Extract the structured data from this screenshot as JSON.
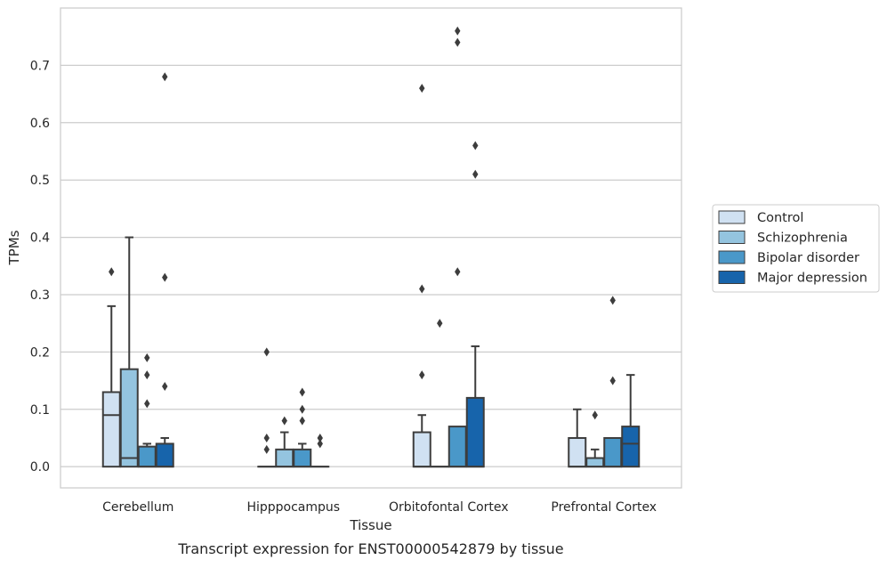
{
  "caption": "Transcript expression for ENST00000542879 by tissue",
  "chart_data": {
    "type": "boxplot",
    "title": "",
    "xlabel": "Tissue",
    "ylabel": "TPMs",
    "ylim": [
      -0.037,
      0.8
    ],
    "yticks": [
      0.0,
      0.1,
      0.2,
      0.3,
      0.4,
      0.5,
      0.6,
      0.7
    ],
    "ytick_labels": [
      "0.0",
      "0.1",
      "0.2",
      "0.3",
      "0.4",
      "0.5",
      "0.6",
      "0.7"
    ],
    "grid": "horizontal",
    "legend_position": "right",
    "categories": [
      "Cerebellum",
      "Hipppocampus",
      "Orbitofontal Cortex",
      "Prefrontal Cortex"
    ],
    "series": [
      {
        "name": "Control",
        "color": "#d0e1f2",
        "boxes": [
          {
            "q1": 0.0,
            "median": 0.09,
            "q3": 0.13,
            "whisker_low": 0.0,
            "whisker_high": 0.28,
            "outliers": [
              0.34
            ]
          },
          {
            "q1": 0.0,
            "median": 0.0,
            "q3": 0.0,
            "whisker_low": 0.0,
            "whisker_high": 0.0,
            "outliers": [
              0.2,
              0.05,
              0.03
            ]
          },
          {
            "q1": 0.0,
            "median": 0.0,
            "q3": 0.06,
            "whisker_low": 0.0,
            "whisker_high": 0.09,
            "outliers": [
              0.66,
              0.31,
              0.16
            ]
          },
          {
            "q1": 0.0,
            "median": 0.0,
            "q3": 0.05,
            "whisker_low": 0.0,
            "whisker_high": 0.1,
            "outliers": []
          }
        ]
      },
      {
        "name": "Schizophrenia",
        "color": "#94c4df",
        "boxes": [
          {
            "q1": 0.0,
            "median": 0.015,
            "q3": 0.17,
            "whisker_low": 0.0,
            "whisker_high": 0.4,
            "outliers": []
          },
          {
            "q1": 0.0,
            "median": 0.0,
            "q3": 0.03,
            "whisker_low": 0.0,
            "whisker_high": 0.06,
            "outliers": [
              0.08
            ]
          },
          {
            "q1": 0.0,
            "median": 0.0,
            "q3": 0.0,
            "whisker_low": 0.0,
            "whisker_high": 0.0,
            "outliers": [
              0.25
            ]
          },
          {
            "q1": 0.0,
            "median": 0.0,
            "q3": 0.015,
            "whisker_low": 0.0,
            "whisker_high": 0.03,
            "outliers": [
              0.09
            ]
          }
        ]
      },
      {
        "name": "Bipolar disorder",
        "color": "#4a98c9",
        "boxes": [
          {
            "q1": 0.0,
            "median": 0.0,
            "q3": 0.035,
            "whisker_low": 0.0,
            "whisker_high": 0.04,
            "outliers": [
              0.19,
              0.16,
              0.11
            ]
          },
          {
            "q1": 0.0,
            "median": 0.0,
            "q3": 0.03,
            "whisker_low": 0.0,
            "whisker_high": 0.04,
            "outliers": [
              0.13,
              0.1,
              0.08
            ]
          },
          {
            "q1": 0.0,
            "median": 0.0,
            "q3": 0.07,
            "whisker_low": 0.0,
            "whisker_high": 0.07,
            "outliers": [
              0.76,
              0.74,
              0.34
            ]
          },
          {
            "q1": 0.0,
            "median": 0.0,
            "q3": 0.05,
            "whisker_low": 0.0,
            "whisker_high": 0.05,
            "outliers": [
              0.29,
              0.15
            ]
          }
        ]
      },
      {
        "name": "Major depression",
        "color": "#1764ab",
        "boxes": [
          {
            "q1": 0.0,
            "median": 0.0,
            "q3": 0.04,
            "whisker_low": 0.0,
            "whisker_high": 0.05,
            "outliers": [
              0.68,
              0.33,
              0.14
            ]
          },
          {
            "q1": 0.0,
            "median": 0.0,
            "q3": 0.0,
            "whisker_low": 0.0,
            "whisker_high": 0.0,
            "outliers": [
              0.05,
              0.04
            ]
          },
          {
            "q1": 0.0,
            "median": 0.0,
            "q3": 0.12,
            "whisker_low": 0.0,
            "whisker_high": 0.21,
            "outliers": [
              0.56,
              0.51
            ]
          },
          {
            "q1": 0.0,
            "median": 0.04,
            "q3": 0.07,
            "whisker_low": 0.0,
            "whisker_high": 0.16,
            "outliers": []
          }
        ]
      }
    ]
  }
}
